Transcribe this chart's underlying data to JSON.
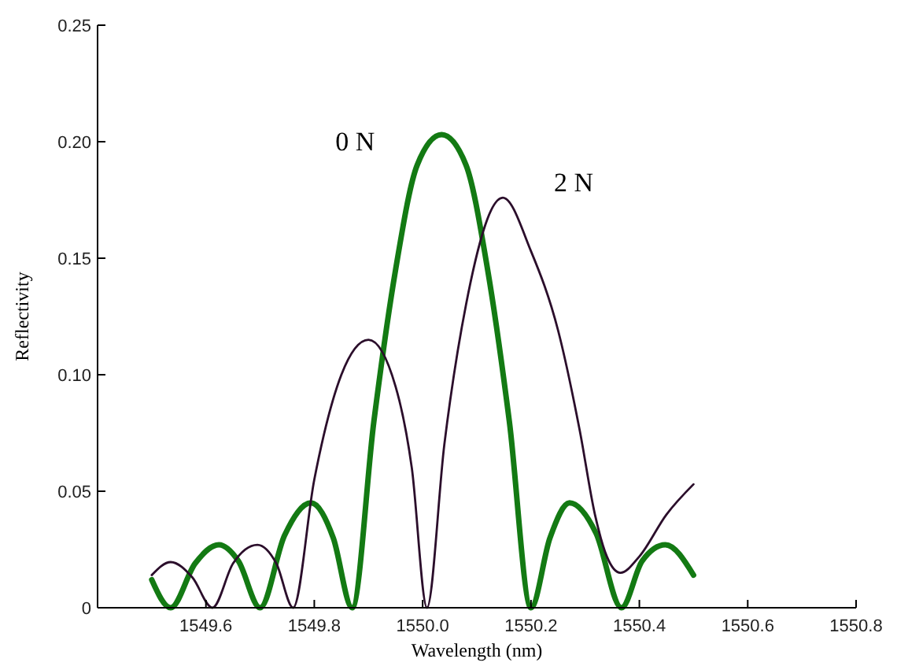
{
  "chart_data": {
    "type": "line",
    "xlabel": "Wavelength (nm)",
    "ylabel": "Reflectivity",
    "xlim": [
      1549.4,
      1550.8
    ],
    "xticks": [
      {
        "value": 1549.6,
        "label": "1549.6"
      },
      {
        "value": 1549.8,
        "label": "1549.8"
      },
      {
        "value": 1550.0,
        "label": "1550.0"
      },
      {
        "value": 1550.2,
        "label": "1550.2"
      },
      {
        "value": 1550.4,
        "label": "1550.4"
      },
      {
        "value": 1550.6,
        "label": "1550.6"
      },
      {
        "value": 1550.8,
        "label": "1550.8"
      }
    ],
    "ylim": [
      0,
      0.25
    ],
    "yticks": [
      0,
      0.05,
      {
        "value": 0.1,
        "label": "0.10"
      },
      0.15,
      {
        "value": 0.2,
        "label": "0.20"
      },
      0.25
    ],
    "grid": false,
    "marker": "none",
    "line_style": "solid",
    "series": [
      {
        "name": "0 N",
        "color": "#137a13",
        "x": [
          1549.5,
          1549.535,
          1549.58,
          1549.624,
          1549.66,
          1549.7,
          1549.745,
          1549.794,
          1549.835,
          1549.87,
          1549.91,
          1549.95,
          1549.99,
          1550.035,
          1550.08,
          1550.12,
          1550.16,
          1550.2,
          1550.235,
          1550.271,
          1550.32,
          1550.367,
          1550.405,
          1550.448,
          1550.5
        ],
        "values": [
          0.012,
          0,
          0.019,
          0.027,
          0.02,
          0,
          0.031,
          0.045,
          0.03,
          0,
          0.08,
          0.145,
          0.19,
          0.203,
          0.19,
          0.145,
          0.08,
          0,
          0.03,
          0.045,
          0.032,
          0,
          0.02,
          0.027,
          0.014
        ]
      },
      {
        "name": "2 N",
        "color": "#2b0e2b",
        "x": [
          1549.5,
          1549.535,
          1549.575,
          1549.612,
          1549.65,
          1549.695,
          1549.73,
          1549.761,
          1549.8,
          1549.85,
          1549.9,
          1549.95,
          1549.98,
          1550.008,
          1550.04,
          1550.08,
          1550.148,
          1550.2,
          1550.25,
          1550.29,
          1550.318,
          1550.34,
          1550.365,
          1550.4,
          1550.45,
          1550.5
        ],
        "values": [
          0.014,
          0.0196,
          0.013,
          0,
          0.019,
          0.027,
          0.019,
          0,
          0.055,
          0.1,
          0.115,
          0.095,
          0.06,
          0,
          0.07,
          0.13,
          0.176,
          0.153,
          0.119,
          0.076,
          0.04,
          0.022,
          0.015,
          0.022,
          0.04,
          0.053
        ]
      }
    ]
  }
}
